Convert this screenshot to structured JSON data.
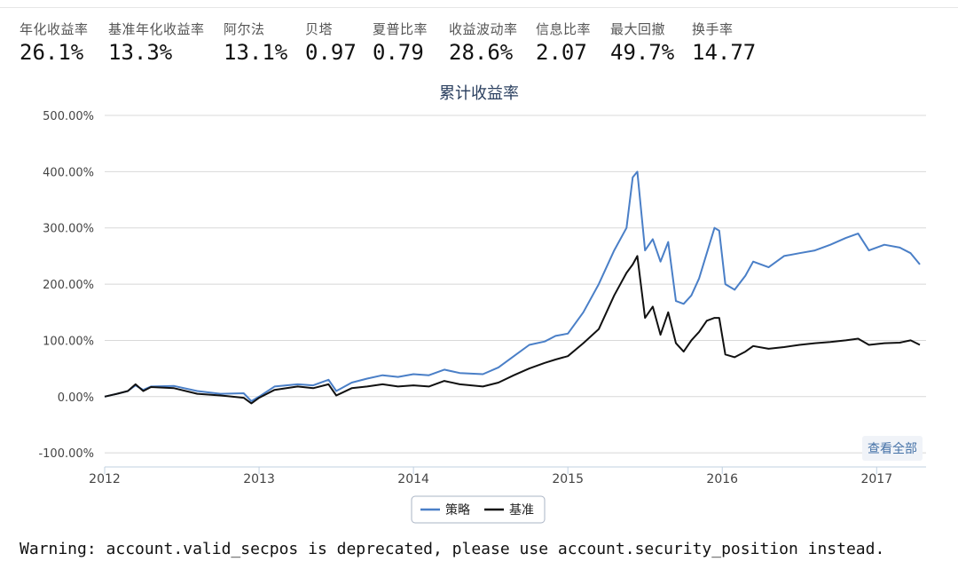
{
  "stats": [
    {
      "label": "年化收益率",
      "value": "26.1%"
    },
    {
      "label": "基准年化收益率",
      "value": "13.3%"
    },
    {
      "label": "阿尔法",
      "value": "13.1%"
    },
    {
      "label": "贝塔",
      "value": "0.97"
    },
    {
      "label": "夏普比率",
      "value": "0.79"
    },
    {
      "label": "收益波动率",
      "value": "28.6%"
    },
    {
      "label": "信息比率",
      "value": "2.07"
    },
    {
      "label": "最大回撤",
      "value": "49.7%"
    },
    {
      "label": "换手率",
      "value": "14.77"
    }
  ],
  "view_all_label": "查看全部",
  "warning": "Warning: account.valid_secpos is deprecated, please use account.security_position instead.",
  "colors": {
    "strategy": "#4a7fc7",
    "benchmark": "#111111",
    "grid": "#d8d8d8"
  },
  "chart_data": {
    "type": "line",
    "title": "累计收益率",
    "xlabel": "",
    "ylabel": "",
    "xlim": [
      2012.0,
      2017.32
    ],
    "ylim": [
      -125,
      500
    ],
    "y_ticks": [
      {
        "value": 500,
        "label": "500.00%"
      },
      {
        "value": 400,
        "label": "400.00%"
      },
      {
        "value": 300,
        "label": "300.00%"
      },
      {
        "value": 200,
        "label": "200.00%"
      },
      {
        "value": 100,
        "label": "100.00%"
      },
      {
        "value": 0,
        "label": "0.00%"
      },
      {
        "value": -100,
        "label": "-100.00%"
      }
    ],
    "x_ticks": [
      {
        "value": 2012,
        "label": "2012"
      },
      {
        "value": 2013,
        "label": "2013"
      },
      {
        "value": 2014,
        "label": "2014"
      },
      {
        "value": 2015,
        "label": "2015"
      },
      {
        "value": 2016,
        "label": "2016"
      },
      {
        "value": 2017,
        "label": "2017"
      }
    ],
    "grid": true,
    "legend": "bottom-center",
    "series": [
      {
        "name": "策略",
        "color": "#4a7fc7",
        "points": [
          [
            2012.0,
            0
          ],
          [
            2012.08,
            5
          ],
          [
            2012.15,
            10
          ],
          [
            2012.2,
            20
          ],
          [
            2012.25,
            12
          ],
          [
            2012.3,
            18
          ],
          [
            2012.45,
            19
          ],
          [
            2012.6,
            10
          ],
          [
            2012.75,
            5
          ],
          [
            2012.9,
            6
          ],
          [
            2012.95,
            -8
          ],
          [
            2013.0,
            0
          ],
          [
            2013.1,
            18
          ],
          [
            2013.25,
            22
          ],
          [
            2013.35,
            20
          ],
          [
            2013.45,
            30
          ],
          [
            2013.5,
            10
          ],
          [
            2013.6,
            25
          ],
          [
            2013.7,
            32
          ],
          [
            2013.8,
            38
          ],
          [
            2013.9,
            35
          ],
          [
            2014.0,
            40
          ],
          [
            2014.1,
            38
          ],
          [
            2014.2,
            48
          ],
          [
            2014.3,
            42
          ],
          [
            2014.45,
            40
          ],
          [
            2014.55,
            52
          ],
          [
            2014.65,
            72
          ],
          [
            2014.75,
            92
          ],
          [
            2014.85,
            98
          ],
          [
            2014.92,
            108
          ],
          [
            2015.0,
            112
          ],
          [
            2015.1,
            150
          ],
          [
            2015.2,
            200
          ],
          [
            2015.3,
            260
          ],
          [
            2015.38,
            300
          ],
          [
            2015.42,
            390
          ],
          [
            2015.45,
            400
          ],
          [
            2015.5,
            260
          ],
          [
            2015.55,
            280
          ],
          [
            2015.6,
            240
          ],
          [
            2015.65,
            275
          ],
          [
            2015.7,
            170
          ],
          [
            2015.75,
            165
          ],
          [
            2015.8,
            180
          ],
          [
            2015.85,
            210
          ],
          [
            2015.9,
            255
          ],
          [
            2015.95,
            300
          ],
          [
            2015.98,
            295
          ],
          [
            2016.02,
            200
          ],
          [
            2016.08,
            190
          ],
          [
            2016.15,
            215
          ],
          [
            2016.2,
            240
          ],
          [
            2016.3,
            230
          ],
          [
            2016.4,
            250
          ],
          [
            2016.5,
            255
          ],
          [
            2016.6,
            260
          ],
          [
            2016.7,
            270
          ],
          [
            2016.8,
            282
          ],
          [
            2016.88,
            290
          ],
          [
            2016.95,
            260
          ],
          [
            2017.05,
            270
          ],
          [
            2017.15,
            265
          ],
          [
            2017.22,
            255
          ],
          [
            2017.28,
            235
          ]
        ]
      },
      {
        "name": "基准",
        "color": "#111111",
        "points": [
          [
            2012.0,
            0
          ],
          [
            2012.08,
            5
          ],
          [
            2012.15,
            10
          ],
          [
            2012.2,
            22
          ],
          [
            2012.25,
            10
          ],
          [
            2012.3,
            17
          ],
          [
            2012.45,
            15
          ],
          [
            2012.6,
            5
          ],
          [
            2012.75,
            2
          ],
          [
            2012.9,
            -2
          ],
          [
            2012.95,
            -12
          ],
          [
            2013.0,
            -2
          ],
          [
            2013.1,
            12
          ],
          [
            2013.25,
            18
          ],
          [
            2013.35,
            15
          ],
          [
            2013.45,
            22
          ],
          [
            2013.5,
            2
          ],
          [
            2013.6,
            15
          ],
          [
            2013.7,
            18
          ],
          [
            2013.8,
            22
          ],
          [
            2013.9,
            18
          ],
          [
            2014.0,
            20
          ],
          [
            2014.1,
            18
          ],
          [
            2014.2,
            28
          ],
          [
            2014.3,
            22
          ],
          [
            2014.45,
            18
          ],
          [
            2014.55,
            25
          ],
          [
            2014.65,
            38
          ],
          [
            2014.75,
            50
          ],
          [
            2014.85,
            60
          ],
          [
            2014.92,
            66
          ],
          [
            2015.0,
            72
          ],
          [
            2015.1,
            95
          ],
          [
            2015.2,
            120
          ],
          [
            2015.3,
            180
          ],
          [
            2015.38,
            220
          ],
          [
            2015.42,
            235
          ],
          [
            2015.45,
            250
          ],
          [
            2015.5,
            140
          ],
          [
            2015.55,
            160
          ],
          [
            2015.6,
            110
          ],
          [
            2015.65,
            150
          ],
          [
            2015.7,
            95
          ],
          [
            2015.75,
            80
          ],
          [
            2015.8,
            100
          ],
          [
            2015.85,
            115
          ],
          [
            2015.9,
            135
          ],
          [
            2015.95,
            140
          ],
          [
            2015.98,
            140
          ],
          [
            2016.02,
            75
          ],
          [
            2016.08,
            70
          ],
          [
            2016.15,
            80
          ],
          [
            2016.2,
            90
          ],
          [
            2016.3,
            85
          ],
          [
            2016.4,
            88
          ],
          [
            2016.5,
            92
          ],
          [
            2016.6,
            95
          ],
          [
            2016.7,
            97
          ],
          [
            2016.8,
            100
          ],
          [
            2016.88,
            103
          ],
          [
            2016.95,
            92
          ],
          [
            2017.05,
            95
          ],
          [
            2017.15,
            96
          ],
          [
            2017.22,
            100
          ],
          [
            2017.28,
            92
          ]
        ]
      }
    ]
  }
}
